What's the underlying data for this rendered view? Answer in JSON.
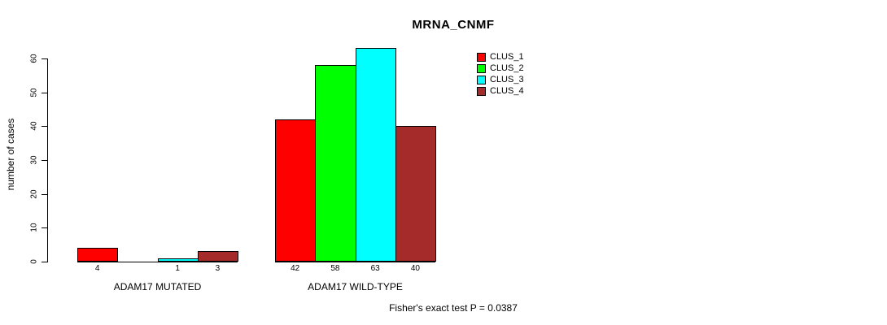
{
  "chart_data": {
    "type": "bar",
    "title": "MRNA_CNMF",
    "ylabel": "number of cases",
    "ylim": [
      0,
      60
    ],
    "yticks": [
      0,
      10,
      20,
      30,
      40,
      50,
      60
    ],
    "grid": false,
    "legend_position": "top-right-inside",
    "categories": [
      "ADAM17 MUTATED",
      "ADAM17 WILD-TYPE"
    ],
    "series": [
      {
        "name": "CLUS_1",
        "color": "#FF0000",
        "values": [
          4,
          42
        ]
      },
      {
        "name": "CLUS_2",
        "color": "#00FF00",
        "values": [
          0,
          58
        ]
      },
      {
        "name": "CLUS_3",
        "color": "#00FFFF",
        "values": [
          1,
          63
        ]
      },
      {
        "name": "CLUS_4",
        "color": "#A52A2A",
        "values": [
          3,
          40
        ]
      }
    ],
    "bar_value_labels": [
      [
        "4",
        "",
        "1",
        "3"
      ],
      [
        "42",
        "58",
        "63",
        "40"
      ]
    ],
    "annotation": "Fisher's exact test P = 0.0387",
    "axis_color": "#000000",
    "background_color": "#FFFFFF"
  }
}
